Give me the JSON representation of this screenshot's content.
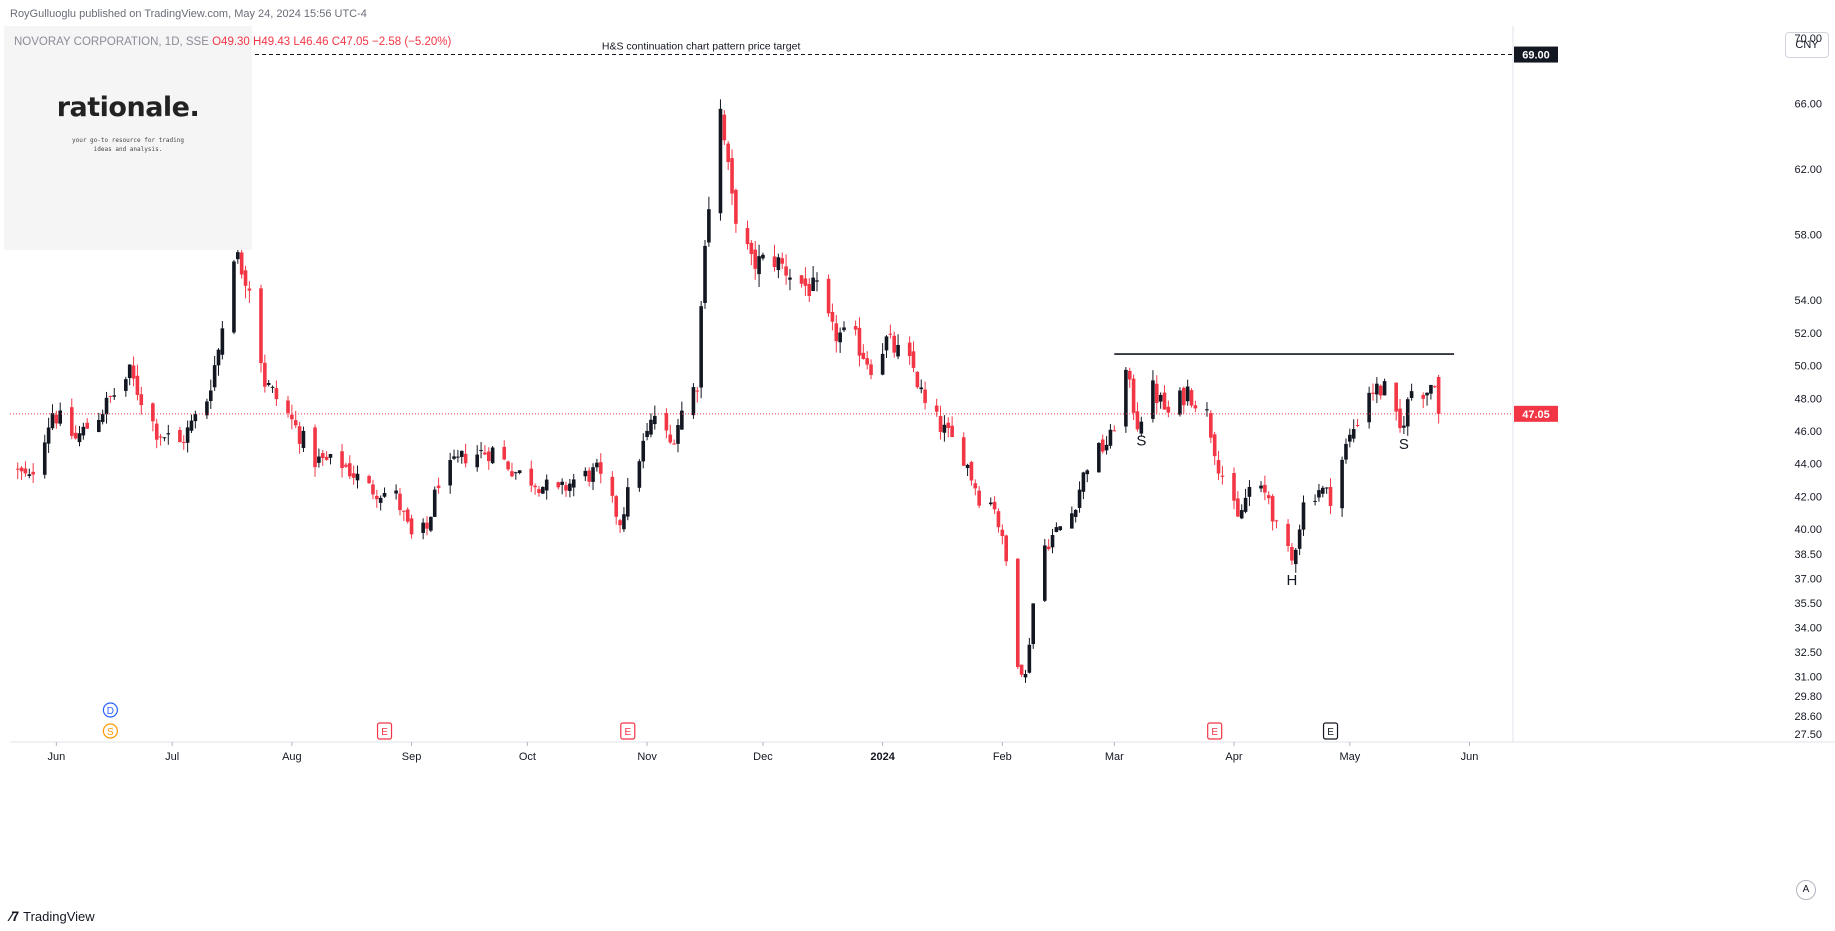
{
  "header": {
    "publisher": "RoyGulluoglu published on TradingView.com, May 24, 2024 15:56 UTC-4",
    "symbol_line": "NOVORAY CORPORATION, 1D, SSE",
    "open": "O49.30",
    "high": "H49.43",
    "low": "L46.46",
    "close": "C47.05",
    "change": "−2.58 (−5.20%)"
  },
  "watermark": {
    "title": "rationale.",
    "subtitle_line1": "your go-to resource for trading",
    "subtitle_line2": "ideas and analysis."
  },
  "currency_label": "CNY",
  "footer": {
    "brand": "TradingView",
    "auto_label": "A"
  },
  "colors": {
    "up": "#131722",
    "down": "#f23645",
    "grid": "#f0f3fa",
    "axis_text": "#131722"
  },
  "chart_data": {
    "type": "candlestick",
    "title": "",
    "ylim": [
      27.0,
      70.5
    ],
    "price_ticks": [
      70.0,
      66.0,
      62.0,
      58.0,
      54.0,
      52.0,
      50.0,
      48.0,
      46.0,
      44.0,
      42.0,
      40.0,
      38.5,
      37.0,
      35.5,
      34.0,
      32.5,
      31.0,
      29.8,
      28.6,
      27.5
    ],
    "price_tick_labels": [
      "70.00",
      "66.00",
      "62.00",
      "58.00",
      "54.00",
      "52.00",
      "50.00",
      "48.00",
      "46.00",
      "44.00",
      "42.00",
      "40.00",
      "38.50",
      "37.00",
      "35.50",
      "34.00",
      "32.50",
      "31.00",
      "29.80",
      "28.60",
      "27.50"
    ],
    "x_labels": [
      {
        "date": "2023-06-01",
        "label": "Jun"
      },
      {
        "date": "2023-07-01",
        "label": "Jul"
      },
      {
        "date": "2023-08-01",
        "label": "Aug"
      },
      {
        "date": "2023-09-01",
        "label": "Sep"
      },
      {
        "date": "2023-10-01",
        "label": "Oct"
      },
      {
        "date": "2023-11-01",
        "label": "Nov"
      },
      {
        "date": "2023-12-01",
        "label": "Dec"
      },
      {
        "date": "2024-01-01",
        "label": "2024"
      },
      {
        "date": "2024-02-01",
        "label": "Feb"
      },
      {
        "date": "2024-03-01",
        "label": "Mar"
      },
      {
        "date": "2024-04-01",
        "label": "Apr"
      },
      {
        "date": "2024-05-01",
        "label": "May"
      },
      {
        "date": "2024-06-01",
        "label": "Jun"
      }
    ],
    "date_range": [
      "2023-05-20",
      "2024-06-12"
    ],
    "last_price": 47.05,
    "last_price_label": "47.05",
    "target": {
      "value": 69.0,
      "label": "69.00",
      "text": "H&S continuation chart pattern price target"
    },
    "neckline": {
      "value": 50.7,
      "from": "2024-03-01",
      "to": "2024-05-28"
    },
    "pattern_labels": [
      {
        "text": "S",
        "date": "2024-03-08",
        "price": 45.1
      },
      {
        "text": "H",
        "date": "2024-04-16",
        "price": 36.6
      },
      {
        "text": "S",
        "date": "2024-05-15",
        "price": 44.9
      }
    ],
    "events": [
      {
        "type": "D",
        "date": "2023-06-15",
        "color": "#2962ff"
      },
      {
        "type": "S",
        "date": "2023-06-15",
        "color": "#ff9800"
      },
      {
        "type": "E",
        "date": "2023-08-25",
        "color": "#f23645"
      },
      {
        "type": "E",
        "date": "2023-10-27",
        "color": "#f23645"
      },
      {
        "type": "E",
        "date": "2024-03-27",
        "color": "#f23645"
      },
      {
        "type": "E",
        "date": "2024-04-26",
        "color": "#131722"
      }
    ],
    "anchors": [
      [
        "2023-05-20",
        43.8
      ],
      [
        "2023-05-25",
        43.0
      ],
      [
        "2023-05-31",
        47.2
      ],
      [
        "2023-06-06",
        45.5
      ],
      [
        "2023-06-12",
        47.0
      ],
      [
        "2023-06-20",
        49.5
      ],
      [
        "2023-06-27",
        46.0
      ],
      [
        "2023-07-03",
        45.2
      ],
      [
        "2023-07-10",
        48.0
      ],
      [
        "2023-07-13",
        51.0
      ],
      [
        "2023-07-17",
        57.0
      ],
      [
        "2023-07-21",
        55.0
      ],
      [
        "2023-07-25",
        49.0
      ],
      [
        "2023-07-31",
        47.0
      ],
      [
        "2023-08-07",
        44.2
      ],
      [
        "2023-08-14",
        44.0
      ],
      [
        "2023-08-21",
        42.5
      ],
      [
        "2023-08-28",
        42.0
      ],
      [
        "2023-09-01",
        39.5
      ],
      [
        "2023-09-05",
        40.0
      ],
      [
        "2023-09-08",
        43.0
      ],
      [
        "2023-09-15",
        44.5
      ],
      [
        "2023-09-22",
        44.8
      ],
      [
        "2023-09-28",
        43.5
      ],
      [
        "2023-10-09",
        42.2
      ],
      [
        "2023-10-13",
        43.0
      ],
      [
        "2023-10-19",
        43.5
      ],
      [
        "2023-10-25",
        40.5
      ],
      [
        "2023-10-30",
        44.5
      ],
      [
        "2023-11-03",
        47.0
      ],
      [
        "2023-11-07",
        45.2
      ],
      [
        "2023-11-10",
        47.2
      ],
      [
        "2023-11-14",
        49.0
      ],
      [
        "2023-11-16",
        58.0
      ],
      [
        "2023-11-20",
        65.5
      ],
      [
        "2023-11-23",
        60.0
      ],
      [
        "2023-11-28",
        56.2
      ],
      [
        "2023-12-04",
        56.5
      ],
      [
        "2023-12-11",
        55.0
      ],
      [
        "2023-12-15",
        54.5
      ],
      [
        "2023-12-19",
        52.0
      ],
      [
        "2023-12-25",
        51.5
      ],
      [
        "2023-12-29",
        50.0
      ],
      [
        "2024-01-02",
        51.5
      ],
      [
        "2024-01-09",
        49.8
      ],
      [
        "2024-01-12",
        47.5
      ],
      [
        "2024-01-17",
        46.0
      ],
      [
        "2024-01-22",
        44.5
      ],
      [
        "2024-01-26",
        42.0
      ],
      [
        "2024-01-30",
        41.5
      ],
      [
        "2024-02-02",
        38.0
      ],
      [
        "2024-02-05",
        32.0
      ],
      [
        "2024-02-07",
        31.0
      ],
      [
        "2024-02-09",
        35.5
      ],
      [
        "2024-02-12",
        39.0
      ],
      [
        "2024-02-19",
        41.0
      ],
      [
        "2024-02-23",
        44.0
      ],
      [
        "2024-02-29",
        45.5
      ],
      [
        "2024-03-04",
        49.5
      ],
      [
        "2024-03-07",
        46.5
      ],
      [
        "2024-03-11",
        48.5
      ],
      [
        "2024-03-15",
        47.0
      ],
      [
        "2024-03-20",
        48.5
      ],
      [
        "2024-03-25",
        47.0
      ],
      [
        "2024-03-28",
        44.0
      ],
      [
        "2024-04-02",
        40.5
      ],
      [
        "2024-04-05",
        42.5
      ],
      [
        "2024-04-10",
        42.0
      ],
      [
        "2024-04-12",
        40.0
      ],
      [
        "2024-04-16",
        38.0
      ],
      [
        "2024-04-19",
        41.5
      ],
      [
        "2024-04-23",
        42.5
      ],
      [
        "2024-04-26",
        42.0
      ],
      [
        "2024-04-30",
        45.0
      ],
      [
        "2024-05-06",
        48.5
      ],
      [
        "2024-05-10",
        48.5
      ],
      [
        "2024-05-14",
        46.0
      ],
      [
        "2024-05-17",
        48.5
      ],
      [
        "2024-05-21",
        48.5
      ],
      [
        "2024-05-23",
        49.3
      ],
      [
        "2024-05-24",
        47.05
      ]
    ]
  }
}
